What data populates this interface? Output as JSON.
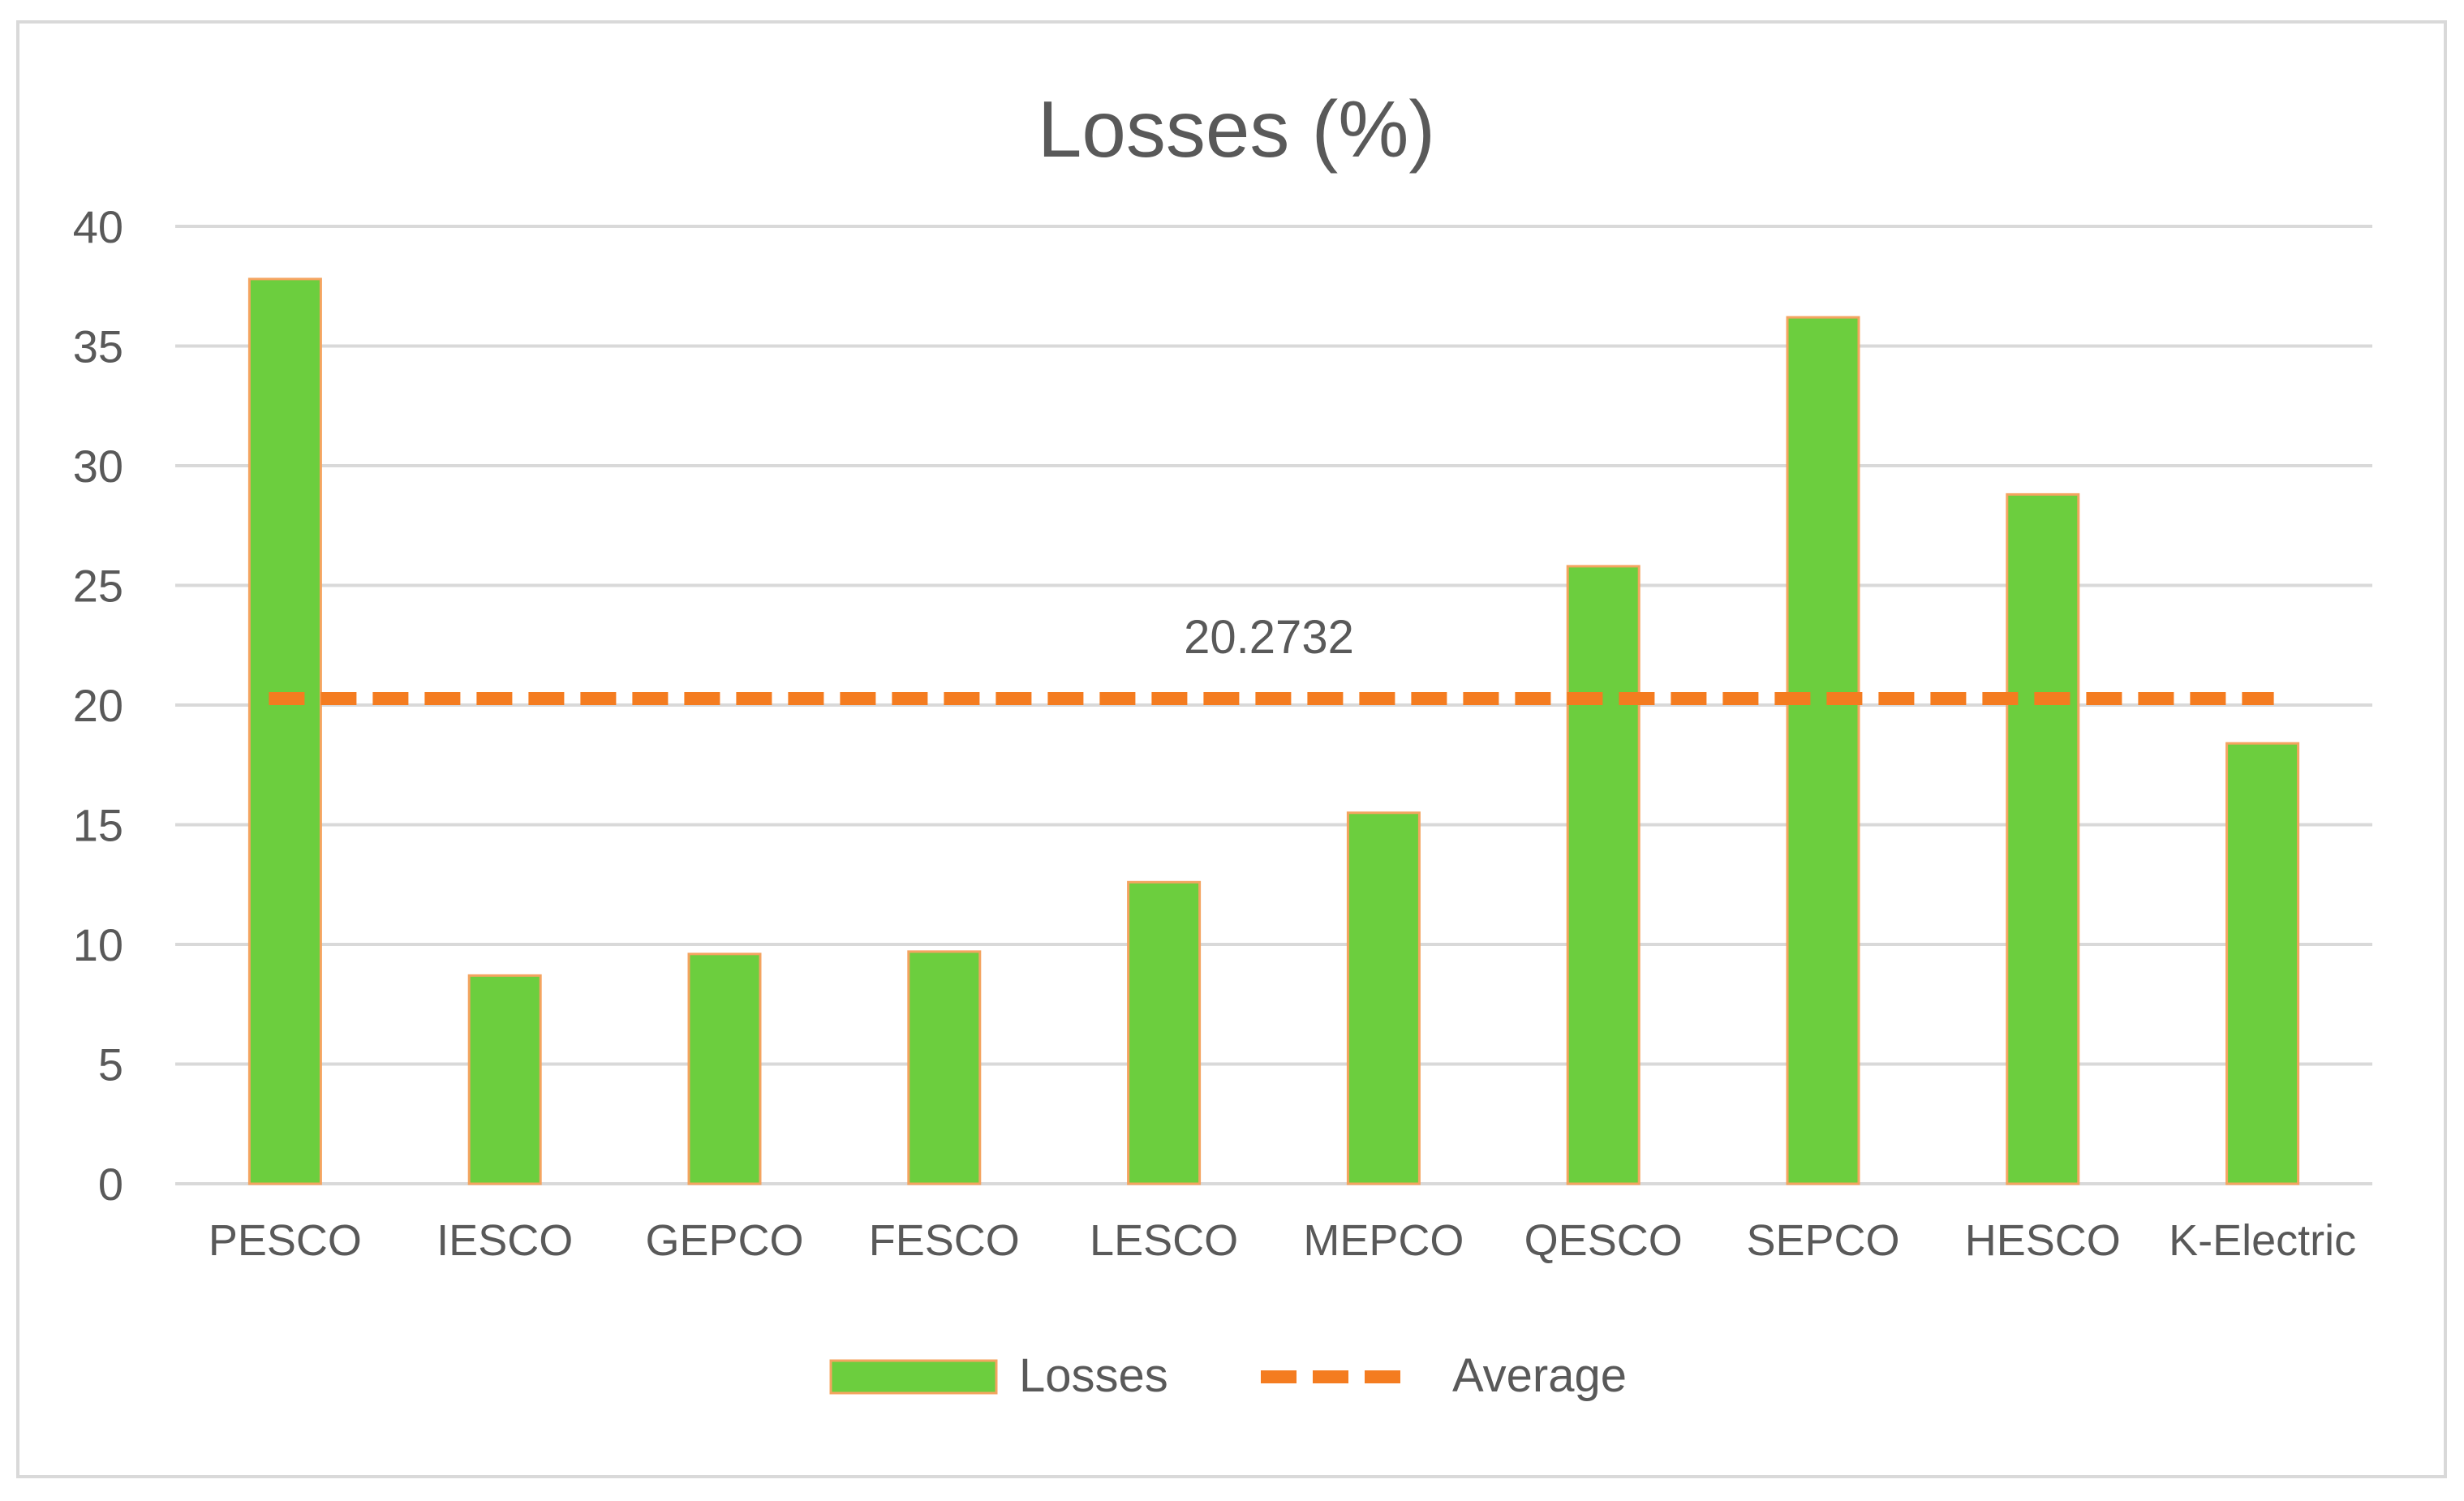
{
  "chart_data": {
    "type": "bar",
    "title": "Losses (%)",
    "xlabel": "",
    "ylabel": "",
    "categories": [
      "PESCO",
      "IESCO",
      "GEPCO",
      "FESCO",
      "LESCO",
      "MEPCO",
      "QESCO",
      "SEPCO",
      "HESCO",
      "K-Electric"
    ],
    "series": [
      {
        "name": "Losses",
        "type": "bar",
        "values": [
          37.8,
          8.7,
          9.6,
          9.7,
          12.6,
          15.5,
          25.8,
          36.2,
          28.8,
          18.4
        ],
        "color": "#6cce3e",
        "edge_color": "#f4a460"
      },
      {
        "name": "Average",
        "type": "line",
        "style": "dashed",
        "value": 20.2732,
        "color": "#f47c20"
      }
    ],
    "average_label": "20.2732",
    "ylim": [
      0,
      40
    ],
    "yticks": [
      "0",
      "5",
      "10",
      "15",
      "20",
      "25",
      "30",
      "35",
      "40"
    ],
    "grid": true,
    "legend": "bottom"
  }
}
